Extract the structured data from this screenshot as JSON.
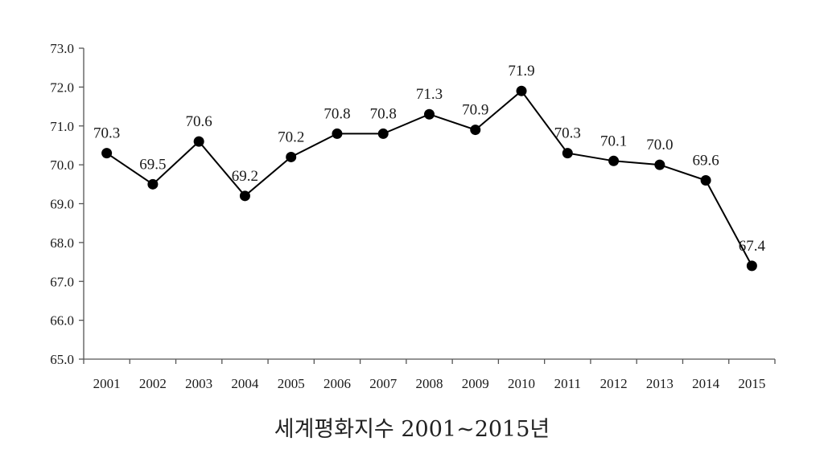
{
  "chart_data": {
    "type": "line",
    "title": "",
    "xlabel": "세계평화지수 2001~2015년",
    "ylabel": "",
    "ylim": [
      65.0,
      73.0
    ],
    "yticks": [
      "65.0",
      "66.0",
      "67.0",
      "68.0",
      "69.0",
      "70.0",
      "71.0",
      "72.0",
      "73.0"
    ],
    "grid": false,
    "legend": "none",
    "line_color": "#000000",
    "categories": [
      "2001",
      "2002",
      "2003",
      "2004",
      "2005",
      "2006",
      "2007",
      "2008",
      "2009",
      "2010",
      "2011",
      "2012",
      "2013",
      "2014",
      "2015"
    ],
    "series": [
      {
        "values": [
          70.3,
          69.5,
          70.6,
          69.2,
          70.2,
          70.8,
          70.8,
          71.3,
          70.9,
          71.9,
          70.3,
          70.1,
          70.0,
          69.6,
          67.4
        ],
        "labels": [
          "70.3",
          "69.5",
          "70.6",
          "69.2",
          "70.2",
          "70.8",
          "70.8",
          "71.3",
          "70.9",
          "71.9",
          "70.3",
          "70.1",
          "70.0",
          "69.6",
          "67.4"
        ]
      }
    ]
  }
}
